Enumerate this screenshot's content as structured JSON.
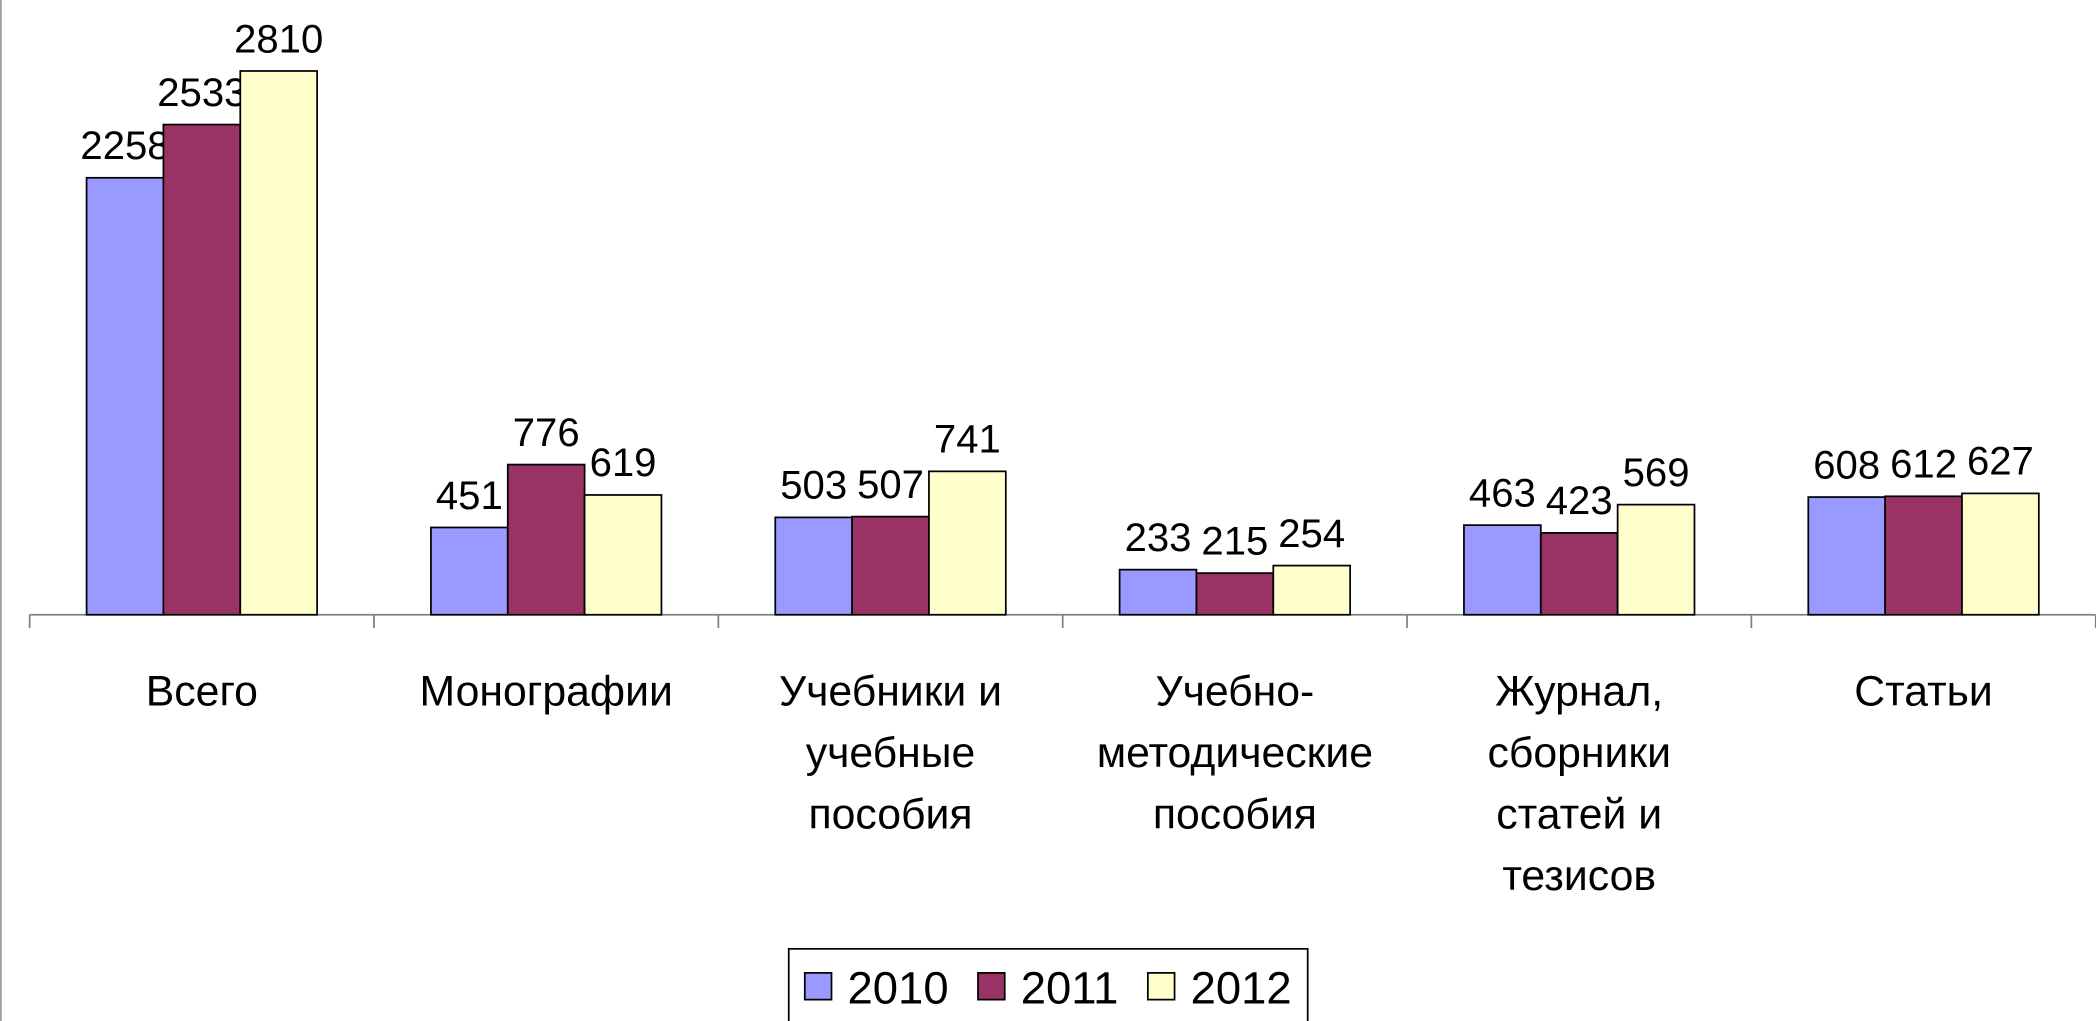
{
  "chart_data": {
    "type": "bar",
    "categories": [
      "Всего",
      "Монографии",
      "Учебники и учебные пособия",
      "Учебно-методические пособия",
      "Журнал, сборники статей и тезисов",
      "Статьи"
    ],
    "series": [
      {
        "name": "2010",
        "color": "#9999ff",
        "values": [
          2258,
          451,
          503,
          233,
          463,
          608
        ]
      },
      {
        "name": "2011",
        "color": "#993366",
        "values": [
          2533,
          776,
          507,
          215,
          423,
          612
        ]
      },
      {
        "name": "2012",
        "color": "#ffffcc",
        "values": [
          2810,
          619,
          741,
          254,
          569,
          627
        ]
      }
    ],
    "ylim": [
      0,
      3000
    ],
    "legend": "bottom"
  }
}
